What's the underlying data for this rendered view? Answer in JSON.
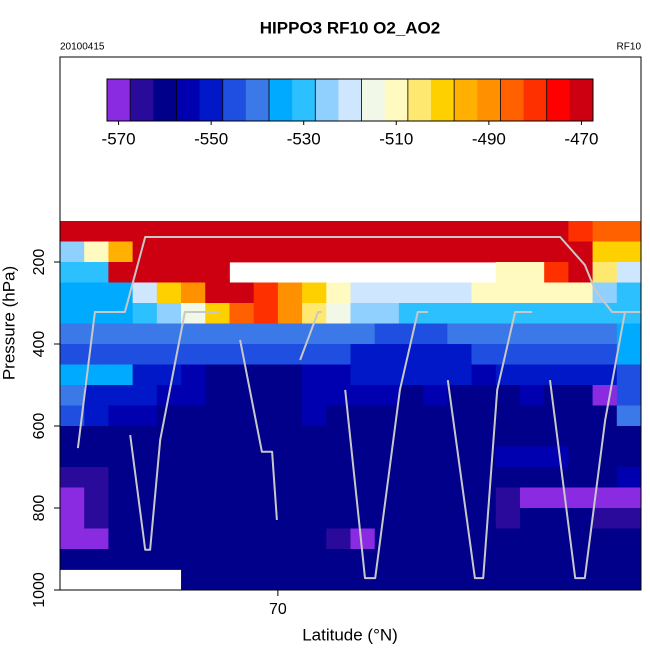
{
  "chart_data": {
    "type": "heatmap",
    "title": "HIPPO3 RF10 O2_AO2",
    "date_label": "20100415",
    "flight_label": "RF10",
    "xlabel": "Latitude (°N)",
    "ylabel": "Pressure (hPa)",
    "xlim": [
      65.5,
      77.5
    ],
    "xticks": [
      70
    ],
    "ylim": [
      1000,
      -300
    ],
    "yticks": [
      200,
      400,
      600,
      800,
      1000
    ],
    "zlim": [
      -572.5,
      -467.5
    ],
    "zticks": [
      -570,
      -550,
      -530,
      -510,
      -490,
      -470
    ],
    "colormap": [
      "#8a2be2",
      "#2a0a9a",
      "#00008b",
      "#0000b0",
      "#0018c8",
      "#1f4fe0",
      "#3b78e8",
      "#00aaff",
      "#2cc0ff",
      "#8fd0ff",
      "#cfe6ff",
      "#f2f8e8",
      "#fffac0",
      "#ffe870",
      "#ffd000",
      "#ffb000",
      "#ff9000",
      "#ff6000",
      "#ff3000",
      "#ff0000",
      "#cc0010"
    ],
    "x": [
      65.75,
      66.25,
      66.75,
      67.25,
      67.75,
      68.25,
      68.75,
      69.25,
      69.75,
      70.25,
      70.75,
      71.25,
      71.75,
      72.25,
      72.75,
      73.25,
      73.75,
      74.25,
      74.75,
      75.25,
      75.75,
      76.25,
      76.75,
      77.25
    ],
    "y": [
      125,
      175,
      225,
      275,
      325,
      375,
      425,
      475,
      525,
      575,
      625,
      675,
      725,
      775,
      825,
      875,
      925,
      975
    ],
    "z": [
      [
        -472,
        -472,
        -468,
        -468,
        -468,
        -468,
        -470,
        -468,
        -468,
        -468,
        -468,
        -468,
        -468,
        -468,
        -470,
        -470,
        -470,
        -470,
        -470,
        -470,
        -470,
        -480,
        -485,
        -485
      ],
      [
        -525,
        -510,
        -495,
        -470,
        -470,
        -472,
        -472,
        -470,
        -470,
        -470,
        -470,
        -470,
        -470,
        -470,
        -470,
        -470,
        -470,
        -470,
        -470,
        -470,
        -470,
        -470,
        -500,
        -500
      ],
      [
        -530,
        -530,
        -470,
        -470,
        -470,
        -470,
        -470,
        null,
        null,
        null,
        null,
        null,
        null,
        null,
        null,
        null,
        null,
        null,
        -510,
        -510,
        -480,
        -470,
        -505,
        -522
      ],
      [
        -533,
        -533,
        -533,
        -522,
        -500,
        -490,
        -470,
        -470,
        -478,
        -490,
        -500,
        -510,
        -518,
        -518,
        -520,
        -520,
        -520,
        -512,
        -512,
        -512,
        -512,
        -512,
        -525,
        -528
      ],
      [
        -535,
        -535,
        -533,
        -530,
        -525,
        -515,
        -500,
        -485,
        -480,
        -490,
        -505,
        -515,
        -525,
        -525,
        -528,
        -528,
        -528,
        -528,
        -528,
        -528,
        -528,
        -528,
        -528,
        -528
      ],
      [
        -540,
        -540,
        -540,
        -540,
        -540,
        -538,
        -538,
        -538,
        -540,
        -540,
        -540,
        -542,
        -542,
        -545,
        -545,
        -545,
        -542,
        -540,
        -540,
        -542,
        -542,
        -540,
        -540,
        -535
      ],
      [
        -545,
        -545,
        -545,
        -545,
        -545,
        -545,
        -545,
        -545,
        -545,
        -545,
        -547,
        -547,
        -548,
        -550,
        -550,
        -550,
        -548,
        -547,
        -547,
        -547,
        -547,
        -545,
        -545,
        -535
      ],
      [
        -535,
        -535,
        -535,
        -550,
        -552,
        -555,
        -558,
        -560,
        -560,
        -558,
        -555,
        -555,
        -552,
        -552,
        -548,
        -548,
        -552,
        -555,
        -552,
        -550,
        -552,
        -552,
        -548,
        -545
      ],
      [
        -540,
        -552,
        -552,
        -552,
        -553,
        -555,
        -558,
        -560,
        -560,
        -558,
        -555,
        -553,
        -553,
        -555,
        -558,
        -555,
        -558,
        -560,
        -558,
        -555,
        -558,
        -558,
        -568,
        -545
      ],
      [
        -545,
        -552,
        -555,
        -555,
        -558,
        -558,
        -560,
        -560,
        -560,
        -558,
        -555,
        -558,
        -560,
        -560,
        -560,
        -558,
        -560,
        -560,
        -560,
        -558,
        -560,
        -560,
        -560,
        -540
      ],
      [
        -560,
        -560,
        -560,
        -560,
        -560,
        -560,
        -560,
        -560,
        -560,
        -560,
        -560,
        -560,
        -560,
        -560,
        -560,
        -560,
        -560,
        -560,
        -560,
        -560,
        -560,
        -560,
        -560,
        -560
      ],
      [
        -562,
        -560,
        -560,
        -560,
        -560,
        -560,
        -560,
        -560,
        -560,
        -560,
        -560,
        -560,
        -560,
        -560,
        -560,
        -560,
        -560,
        -560,
        -555,
        -555,
        -555,
        -558,
        -560,
        -560
      ],
      [
        -563,
        -563,
        -560,
        -560,
        -560,
        -560,
        -560,
        -560,
        -560,
        -560,
        -560,
        -560,
        -560,
        -560,
        -560,
        -560,
        -560,
        -560,
        -560,
        -560,
        -560,
        -560,
        -560,
        -555
      ],
      [
        -568,
        -565,
        -562,
        -560,
        -560,
        -560,
        -560,
        -560,
        -560,
        -560,
        -560,
        -560,
        -560,
        -560,
        -560,
        -560,
        -560,
        -562,
        -565,
        -568,
        -570,
        -570,
        -570,
        -570
      ],
      [
        -572,
        -565,
        -560,
        -560,
        -560,
        -560,
        -560,
        -560,
        -560,
        -560,
        -560,
        -560,
        -560,
        -560,
        -560,
        -560,
        -560,
        -562,
        -565,
        -562,
        -562,
        -562,
        -565,
        -565
      ],
      [
        -570,
        -570,
        -562,
        -560,
        -560,
        -560,
        -560,
        -560,
        -560,
        -562,
        -562,
        -565,
        -568,
        -562,
        -560,
        -560,
        -560,
        -560,
        -560,
        -560,
        -560,
        -560,
        -560,
        -560
      ],
      [
        -558,
        -558,
        -558,
        -558,
        -558,
        -558,
        -558,
        -558,
        -558,
        -558,
        -558,
        -558,
        -558,
        -558,
        -558,
        -558,
        -558,
        -558,
        -558,
        -558,
        -558,
        -558,
        -558,
        -558
      ],
      [
        null,
        null,
        null,
        null,
        null,
        -560,
        -560,
        -560,
        -560,
        -560,
        -560,
        -560,
        -560,
        -560,
        -560,
        -560,
        -560,
        -560,
        -560,
        -560,
        -560,
        -560,
        -560,
        -560
      ]
    ],
    "track": {
      "color": "#c8c8c8",
      "x": [
        65.87,
        66.22,
        66.84,
        67.26,
        75.83,
        76.34,
        76.55,
        76.9,
        77.5,
        null,
        66.95,
        67.26,
        67.36,
        67.57,
        68.08,
        68.8,
        null,
        69.22,
        69.67,
        69.88,
        69.98,
        null,
        70.46,
        70.83,
        70.91,
        null,
        71.39,
        71.8,
        72.01,
        72.52,
        72.89,
        73.1,
        null,
        73.51,
        74.07,
        74.24,
        74.53,
        74.9,
        75.25,
        null,
        75.62,
        76.14,
        76.34,
        76.76,
        77.17,
        77.5
      ],
      "y": [
        654,
        322,
        322,
        139,
        139,
        207,
        268,
        322,
        322,
        null,
        622,
        902,
        902,
        634,
        322,
        322,
        null,
        390,
        663,
        663,
        829,
        null,
        439,
        322,
        322,
        null,
        512,
        971,
        971,
        512,
        322,
        322,
        null,
        488,
        971,
        971,
        512,
        322,
        322,
        null,
        488,
        971,
        971,
        585,
        322,
        322
      ]
    }
  }
}
